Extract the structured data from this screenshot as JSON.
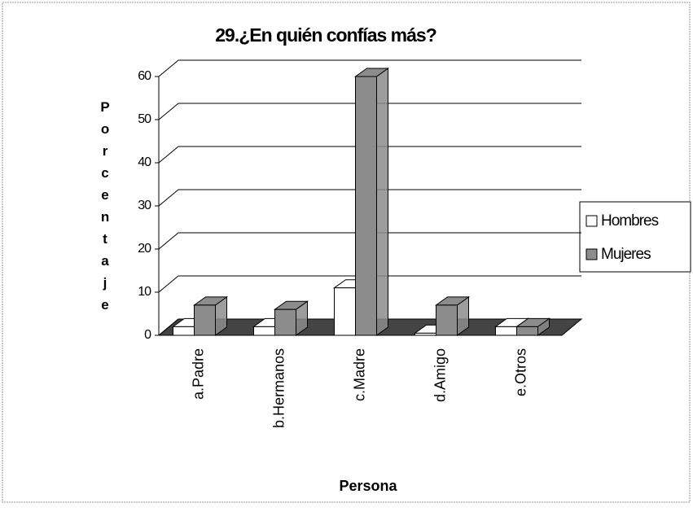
{
  "chart_data": {
    "type": "bar3d",
    "title": "29.¿En quién confías más?",
    "x_label": "Persona",
    "y_label": "Porcentaje",
    "categories": [
      "a.Padre",
      "b.Hermanos",
      "c.Madre",
      "d.Amigo",
      "e.Otros"
    ],
    "series": [
      {
        "name": "Hombres",
        "color": "#ffffff",
        "values": [
          2,
          2,
          11,
          0.5,
          2
        ]
      },
      {
        "name": "Mujeres",
        "color": "#8c8c8c",
        "values": [
          7,
          6,
          60,
          7,
          2
        ]
      }
    ],
    "ylim": [
      0,
      60
    ],
    "yticks": [
      0,
      10,
      20,
      30,
      40,
      50,
      60
    ],
    "grid": true,
    "legend": "right"
  }
}
